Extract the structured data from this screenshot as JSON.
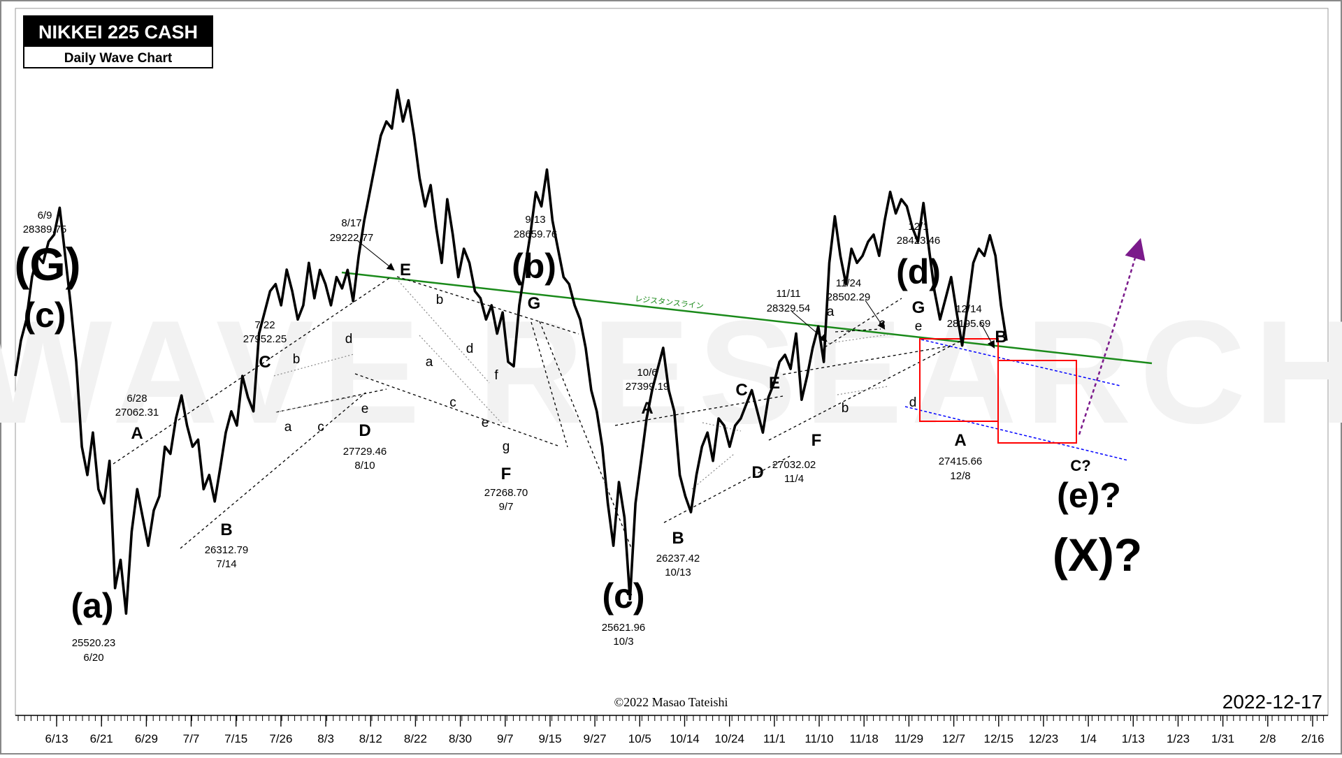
{
  "title_box": {
    "title": "NIKKEI 225 CASH",
    "subtitle": "Daily Wave Chart"
  },
  "watermark": "WAVE RESEARCH",
  "copyright": "©2022 Masao Tateishi",
  "date_stamp": "2022-12-17",
  "resistance_label": "レジスタンスライン",
  "colors": {
    "price": "#000000",
    "resistance": "#1a8a1a",
    "channel": "#0000ff",
    "box": "#ff0000",
    "projection": "#7b1a8b",
    "watermark": "#f2f2f2"
  },
  "chart_data": {
    "type": "line",
    "title": "NIKKEI 225 CASH",
    "subtitle": "Daily Wave Chart",
    "ylim": [
      24800,
      29800
    ],
    "x_ticks": [
      "6/13",
      "6/21",
      "6/29",
      "7/7",
      "7/15",
      "7/26",
      "8/3",
      "8/12",
      "8/22",
      "8/30",
      "9/7",
      "9/15",
      "9/27",
      "10/5",
      "10/14",
      "10/24",
      "11/1",
      "11/10",
      "11/18",
      "11/29",
      "12/7",
      "12/15",
      "12/23",
      "1/4",
      "1/13",
      "1/23",
      "1/31",
      "2/8",
      "2/16"
    ],
    "series": [
      {
        "values": [
          27200,
          27450,
          27600,
          27900,
          28050,
          28000,
          28150,
          28200,
          28389.75,
          28050,
          27700,
          27300,
          26700,
          26500,
          26800,
          26400,
          26300,
          26600,
          25700,
          25900,
          25520.23,
          26100,
          26400,
          26200,
          26000,
          26250,
          26350,
          26700,
          26650,
          26900,
          27062.31,
          26850,
          26700,
          26750,
          26400,
          26500,
          26312.79,
          26550,
          26800,
          26950,
          26850,
          27200,
          27050,
          26950,
          27500,
          27650,
          27800,
          27850,
          27700,
          27952.25,
          27800,
          27600,
          27700,
          28000,
          27750,
          27950,
          27850,
          27700,
          27900,
          27820,
          27950,
          27729.46,
          28050,
          28300,
          28500,
          28700,
          28900,
          29000,
          28950,
          29222.77,
          29000,
          29150,
          28900,
          28600,
          28400,
          28550,
          28250,
          28000,
          28450,
          28200,
          27900,
          28100,
          28000,
          27800,
          27750,
          27600,
          27700,
          27500,
          27650,
          27300,
          27268.7,
          27700,
          27950,
          28200,
          28500,
          28400,
          28659.76,
          28300,
          28100,
          27900,
          27850,
          27700,
          27600,
          27400,
          27100,
          26950,
          26700,
          26300,
          26000,
          26450,
          26200,
          25621.96,
          26300,
          26600,
          26900,
          27100,
          27250,
          27399.19,
          27100,
          26950,
          26500,
          26350,
          26237.42,
          26500,
          26700,
          26800,
          26600,
          26900,
          26850,
          26700,
          26850,
          26900,
          27000,
          27100,
          26950,
          26800,
          27050,
          27150,
          27300,
          27350,
          27250,
          27500,
          27032.02,
          27200,
          27400,
          27550,
          27300,
          28000,
          28329.54,
          28050,
          27850,
          28100,
          28000,
          28050,
          28150,
          28200,
          28050,
          28300,
          28502.29,
          28350,
          28450,
          28400,
          28250,
          28150,
          28423.46,
          28100,
          27800,
          27600,
          27750,
          27900,
          27650,
          27415.66,
          27700,
          28000,
          28100,
          28050,
          28195.69,
          28050,
          27700,
          27450
        ]
      }
    ],
    "wave_labels": [
      "(G)",
      "(c)",
      "(a)",
      "(b)",
      "(c)",
      "(d)",
      "(e)?",
      "(X)?",
      "A",
      "B",
      "C",
      "D",
      "E",
      "F",
      "G",
      "a",
      "b",
      "c",
      "d",
      "e",
      "f",
      "g",
      "C?"
    ],
    "annotations": [
      {
        "date": "6/9",
        "value": "28389.75"
      },
      {
        "date": "6/20",
        "value": "25520.23"
      },
      {
        "date": "6/28",
        "value": "27062.31"
      },
      {
        "date": "7/14",
        "value": "26312.79"
      },
      {
        "date": "7/22",
        "value": "27952.25"
      },
      {
        "date": "8/10",
        "value": "27729.46"
      },
      {
        "date": "8/17",
        "value": "29222.77"
      },
      {
        "date": "9/7",
        "value": "27268.70"
      },
      {
        "date": "9/13",
        "value": "28659.76"
      },
      {
        "date": "10/3",
        "value": "25621.96"
      },
      {
        "date": "10/6",
        "value": "27399.19"
      },
      {
        "date": "10/13",
        "value": "26237.42"
      },
      {
        "date": "11/4",
        "value": "27032.02"
      },
      {
        "date": "11/11",
        "value": "28329.54"
      },
      {
        "date": "11/24",
        "value": "28502.29"
      },
      {
        "date": "12/1",
        "value": "28423.46"
      },
      {
        "date": "12/8",
        "value": "27415.66"
      },
      {
        "date": "12/14",
        "value": "28195.69"
      }
    ],
    "grid": false
  }
}
